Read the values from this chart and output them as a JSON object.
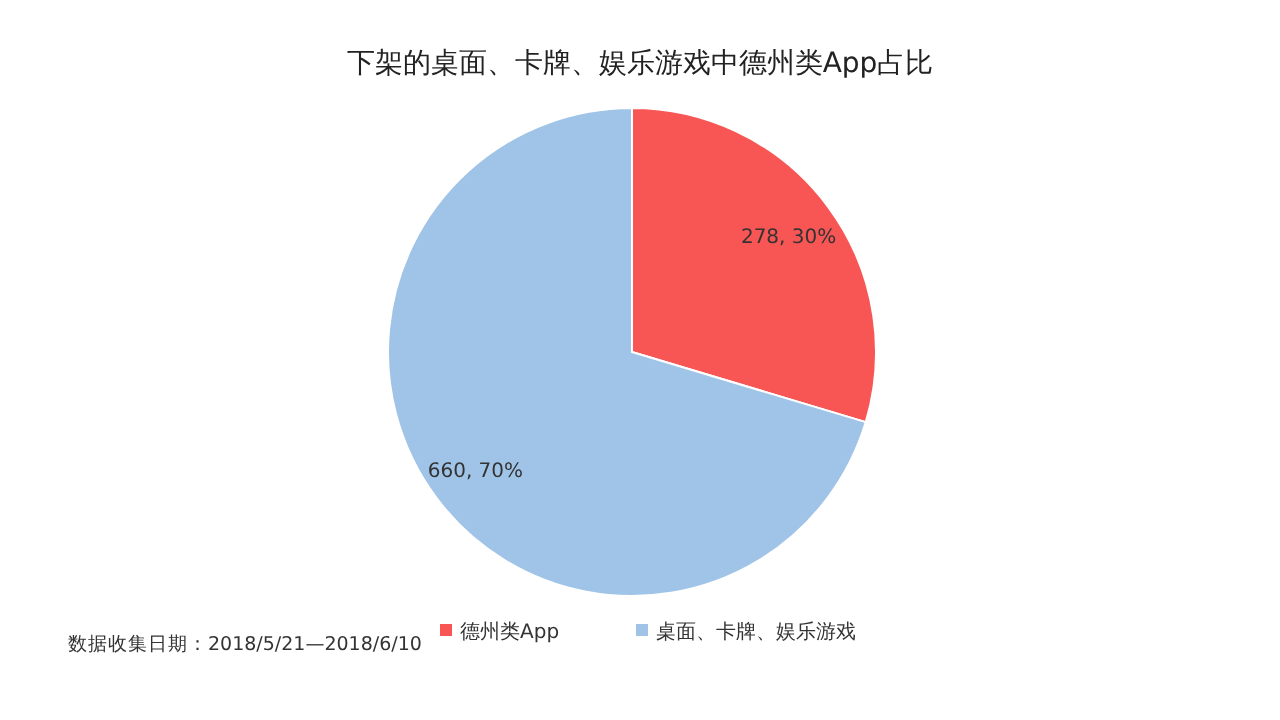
{
  "chart_data": {
    "type": "pie",
    "title": "下架的桌面、卡牌、娱乐游戏中德州类App占比",
    "categories": [
      "德州类App",
      "桌面、卡牌、娱乐游戏"
    ],
    "values": [
      278,
      660
    ],
    "colors": [
      "#f85555",
      "#a0c4e7"
    ],
    "value_labels": [
      "278, 30%",
      "660, 70%"
    ],
    "legend": "bottom",
    "annotations": [
      "数据收集日期：2018/5/21—2018/6/10"
    ]
  }
}
